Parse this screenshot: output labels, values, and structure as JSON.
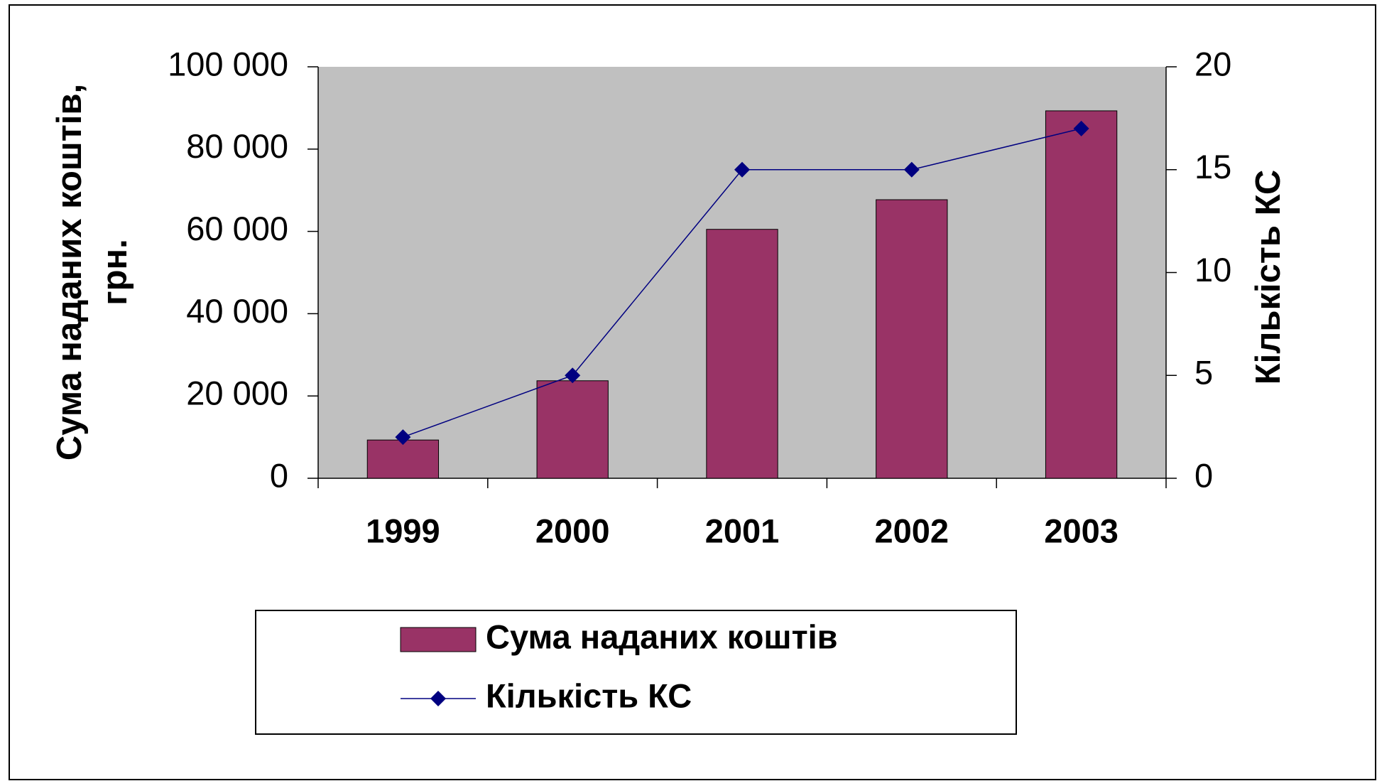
{
  "chart_data": {
    "type": "bar_line",
    "categories": [
      "1999",
      "2000",
      "2001",
      "2002",
      "2003"
    ],
    "ylabel": [
      "Сума наданих коштів,",
      "грн."
    ],
    "y2label": "Кількість КС",
    "ylim": [
      0,
      100000
    ],
    "yticks": [
      0,
      {
        "value": 20000,
        "label": "20 000"
      },
      {
        "value": 40000,
        "label": "40 000"
      },
      {
        "value": 60000,
        "label": "60 000"
      },
      {
        "value": 80000,
        "label": "80 000"
      },
      {
        "value": 100000,
        "label": "100 000"
      }
    ],
    "y2lim": [
      0,
      20
    ],
    "y2ticks": [
      0,
      5,
      10,
      15,
      20
    ],
    "plot_background": "#c0c0c0",
    "legend": "bottom",
    "series": [
      {
        "name": "Сума наданих коштів",
        "type": "bar",
        "color": "#993366",
        "values": [
          9300,
          23700,
          60500,
          67700,
          89300
        ]
      },
      {
        "name": "Кількість КС",
        "type": "line",
        "color": "#000080",
        "axis": "y2",
        "values": [
          2,
          5,
          15,
          15,
          17
        ]
      }
    ]
  }
}
